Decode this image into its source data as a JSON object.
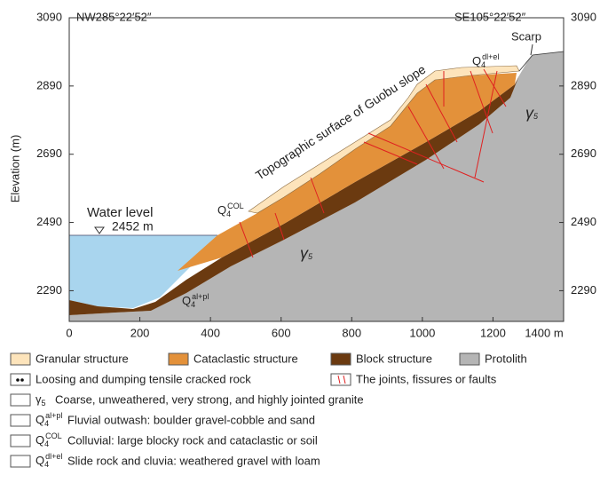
{
  "section": {
    "xlim": [
      0,
      1400
    ],
    "ylim": [
      2200,
      3090
    ],
    "xticks": [
      0,
      200,
      400,
      600,
      800,
      1000,
      1200,
      {
        "value": 1400,
        "label": "1400 m"
      }
    ],
    "yticks": [
      2290,
      2490,
      2690,
      2890,
      3090
    ],
    "y_label": "Elevation (m)",
    "left_direction": "NW285°22′52″",
    "right_direction": "SE105°22′52″",
    "scarp": "Scarp",
    "water_level": "Water level",
    "water_elevation": "2452 m",
    "surface": "Topographic surface of Guobu slope",
    "labels": [
      {
        "base": "Q",
        "sub": "4",
        "sup": "COL"
      },
      {
        "base": "Q",
        "sub": "4",
        "sup": "al+pl"
      },
      {
        "base": "Q",
        "sub": "4",
        "sup": "dl+el"
      },
      {
        "base": "γ",
        "sub": "5"
      },
      {
        "base": "γ",
        "sub": "5"
      }
    ]
  },
  "legend": {
    "materials": [
      "Granular structure",
      "Cataclastic structure",
      "Block structure",
      "Protolith"
    ],
    "loose": "Loosing and dumping tensile cracked rock",
    "joints": "The joints, fissures or faults",
    "rows": [
      {
        "symbol": {
          "base": "γ",
          "sub": "5"
        },
        "text": "Coarse, unweathered, very strong, and highly jointed granite"
      },
      {
        "symbol": {
          "base": "Q",
          "sub": "4",
          "sup": "al+pl"
        },
        "text": "Fluvial outwash: boulder gravel-cobble and sand"
      },
      {
        "symbol": {
          "base": "Q",
          "sub": "4",
          "sup": "COL"
        },
        "text": "Colluvial: large blocky rock and cataclastic or soil"
      },
      {
        "symbol": {
          "base": "Q",
          "sub": "4",
          "sup": "dl+el"
        },
        "text": "Slide rock and cluvia: weathered gravel with loam"
      }
    ]
  }
}
